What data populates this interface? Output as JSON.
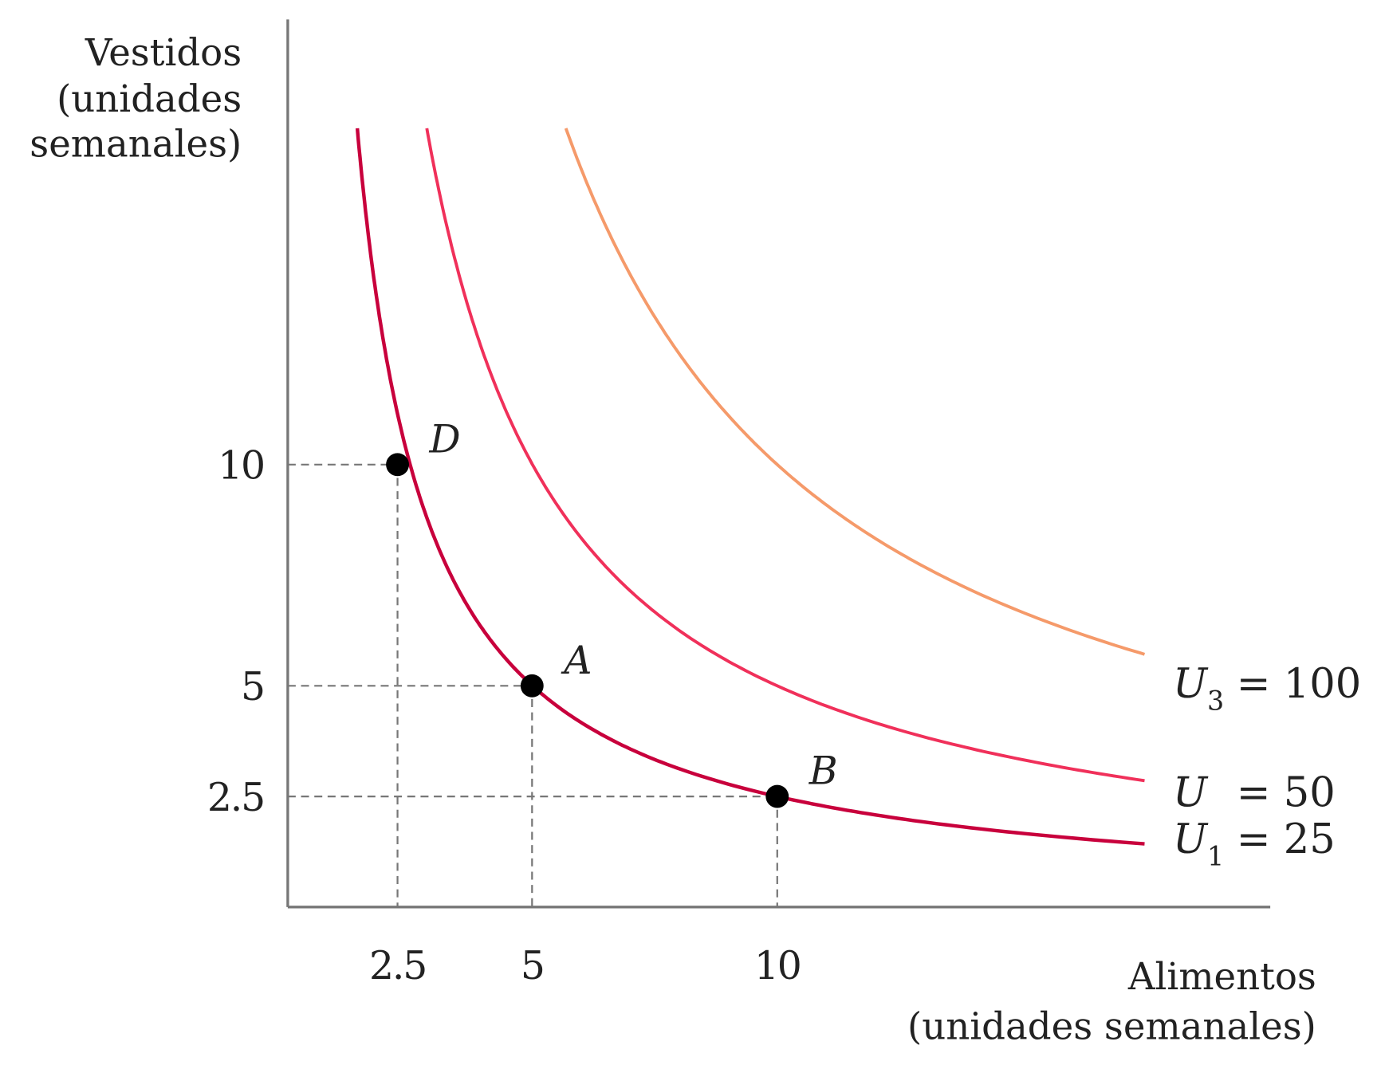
{
  "chart_data": {
    "type": "line",
    "title": "",
    "ylabel": [
      "Vestidos",
      "(unidades",
      "semanales)"
    ],
    "xlabel": [
      "Alimentos",
      "(unidades semanales)"
    ],
    "xlim": [
      0,
      20
    ],
    "ylim": [
      0,
      20
    ],
    "x_ticks": [
      {
        "value": 2.5,
        "label": "2.5"
      },
      {
        "value": 5,
        "label": "5"
      },
      {
        "value": 10,
        "label": "10"
      }
    ],
    "y_ticks": [
      {
        "value": 10,
        "label": "10"
      },
      {
        "value": 5,
        "label": "5"
      },
      {
        "value": 2.5,
        "label": "2.5"
      }
    ],
    "series": [
      {
        "name": "U1",
        "label_main": "U",
        "label_sub": "1",
        "label_rest": "= 25",
        "utility": 25,
        "color": "#c8003c"
      },
      {
        "name": "U2",
        "label_main": "U",
        "label_sub": "",
        "label_rest": "= 50",
        "utility": 50,
        "color": "#f0305a"
      },
      {
        "name": "U3",
        "label_main": "U",
        "label_sub": "3",
        "label_rest": "= 100",
        "utility": 100,
        "color": "#f59a6a"
      }
    ],
    "points": [
      {
        "label": "D",
        "x": 2.5,
        "y": 10
      },
      {
        "label": "A",
        "x": 5,
        "y": 5
      },
      {
        "label": "B",
        "x": 10,
        "y": 2.5
      }
    ]
  }
}
